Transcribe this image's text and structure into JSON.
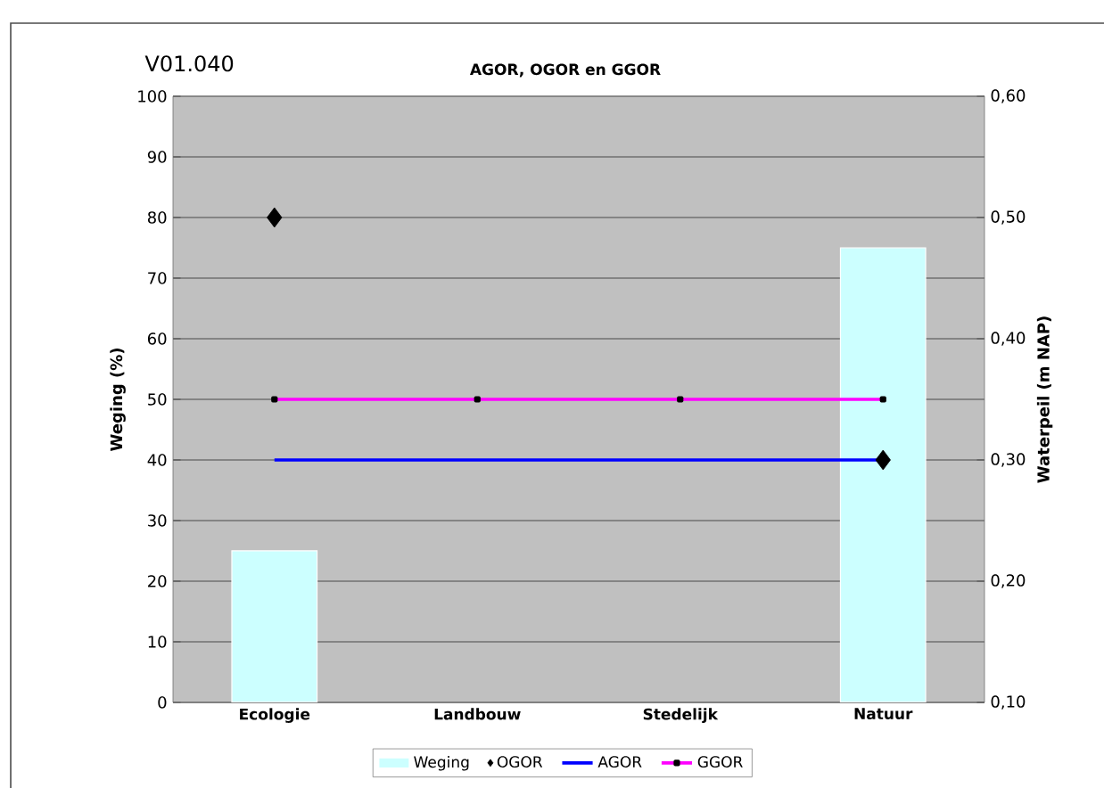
{
  "chart_data": {
    "type": "bar",
    "title": "AGOR, OGOR en GGOR",
    "annotations": [
      "V01.040"
    ],
    "ylabel": "Weging (%)",
    "y2label": "Waterpeil (m NAP)",
    "categories": [
      "Ecologie",
      "Landbouw",
      "Stedelijk",
      "Natuur"
    ],
    "series": [
      {
        "name": "Weging",
        "color": "#ccffff",
        "values": [
          25,
          null,
          null,
          75
        ]
      },
      {
        "name": "OGOR",
        "type": "scatter",
        "axis": "y2",
        "marker": "diamond",
        "color": "#000000",
        "values": [
          0.5,
          null,
          null,
          0.3
        ]
      },
      {
        "name": "AGOR",
        "type": "line",
        "axis": "y2",
        "marker": "none",
        "color": "#0000ff",
        "values": [
          0.3,
          0.3,
          0.3,
          0.3
        ]
      },
      {
        "name": "GGOR",
        "type": "line",
        "axis": "y2",
        "marker": "square",
        "color": "#ff00ff",
        "values": [
          0.35,
          0.35,
          0.35,
          0.35
        ]
      }
    ],
    "ylim": [
      0,
      100
    ],
    "yticks": [
      0,
      10,
      20,
      30,
      40,
      50,
      60,
      70,
      80,
      90,
      100
    ],
    "y2lim": [
      0.1,
      0.6
    ],
    "y2ticks": [
      {
        "value": 0.1,
        "label": "0,10"
      },
      {
        "value": 0.2,
        "label": "0,20"
      },
      {
        "value": 0.3,
        "label": "0,30"
      },
      {
        "value": 0.4,
        "label": "0,40"
      },
      {
        "value": 0.5,
        "label": "0,50"
      },
      {
        "value": 0.6,
        "label": "0,60"
      }
    ],
    "grid": "y",
    "legend": "bottom"
  }
}
